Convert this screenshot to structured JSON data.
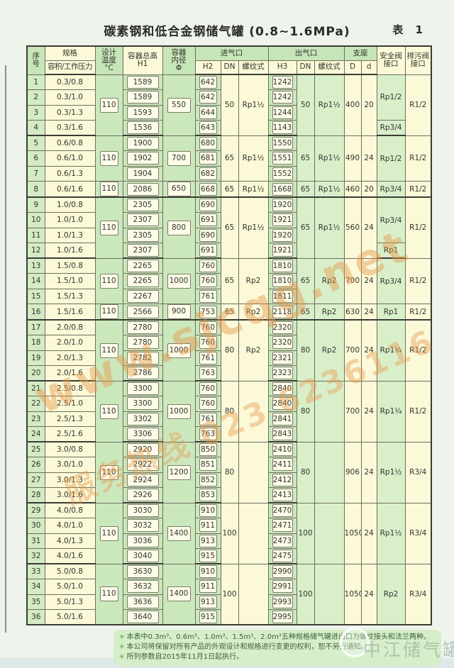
{
  "page": {
    "title": "碳素钢和低合金钢储气罐 (0.8~1.6MPa)",
    "table_label": "表 1"
  },
  "colors": {
    "header_green": "#c6e5b8",
    "cell_green": "#d9efca",
    "cell_yellow": "#fbf9d8",
    "value_box": "#fdfce9",
    "watermark_orange": "#e5994d",
    "notes_green": "#d6eec9"
  },
  "table": {
    "header": {
      "seq": "序\n号",
      "spec": "规格",
      "spec_sub": "容积/工作压力",
      "temp": "设计\n温度\n°C",
      "total_height": "容器总高\nH1",
      "inner_dia": "容器\n内径\nΦ",
      "inlet": "进气口",
      "outlet": "出气口",
      "support": "支座",
      "h2": "H2",
      "dn_in": "DN",
      "thread_in": "螺纹式",
      "h3": "H3",
      "dn_out": "DN",
      "thread_out": "螺纹式",
      "D": "D",
      "d": "d",
      "safety": "安全阀\n接口",
      "drain": "排污阀\n接口"
    },
    "blocks": [
      {
        "rows": [
          {
            "no": 1,
            "spec": "0.3/0.8",
            "h1": "1589",
            "h2": "642",
            "h3": "1242"
          },
          {
            "no": 2,
            "spec": "0.3/1.0",
            "h1": "1589",
            "h2": "642",
            "h3": "1242"
          },
          {
            "no": 3,
            "spec": "0.3/1.3",
            "h1": "1593",
            "h2": "644",
            "h3": "1244"
          },
          {
            "no": 4,
            "spec": "0.3/1.6",
            "h1": "1536",
            "h2": "643",
            "h3": "1143"
          }
        ],
        "temp": "110",
        "phi": "550",
        "dn_in": "50",
        "thread_in": "Rp1½",
        "dn_out": "50",
        "thread_out": "Rp1½",
        "D": "400",
        "d": "20",
        "safety": [
          {
            "label": "Rp1/2",
            "span": 3
          },
          {
            "label": "Rp3/4",
            "span": 1
          }
        ],
        "drain": [
          {
            "label": "R1/2",
            "span": 4
          }
        ]
      },
      {
        "rows": [
          {
            "no": 5,
            "spec": "0.6/0.8",
            "h1": "1900",
            "h2": "680",
            "h3": "1550"
          },
          {
            "no": 6,
            "spec": "0.6/1.0",
            "h1": "1902",
            "h2": "681",
            "h3": "1551"
          },
          {
            "no": 7,
            "spec": "0.6/1.3",
            "h1": "1904",
            "h2": "682",
            "h3": "1552"
          }
        ],
        "temp": "110",
        "phi": "700",
        "dn_in": "65",
        "thread_in": "Rp1½",
        "dn_out": "65",
        "thread_out": "Rp1½",
        "D": "490",
        "d": "24",
        "safety": [
          {
            "label": "Rp1/2",
            "span": 3
          }
        ],
        "drain": [
          {
            "label": "R1/2",
            "span": 3
          }
        ]
      },
      {
        "rows": [
          {
            "no": 8,
            "spec": "0.6/1.6",
            "h1": "2086",
            "h2": "668",
            "h3": "1668"
          }
        ],
        "temp": "110",
        "phi": "650",
        "dn_in": "65",
        "thread_in": "Rp1½",
        "dn_out": "65",
        "thread_out": "Rp1½",
        "D": "460",
        "d": "20",
        "safety": [
          {
            "label": "Rp3/4",
            "span": 1
          }
        ],
        "drain": [
          {
            "label": "R1/2",
            "span": 1
          }
        ]
      },
      {
        "rows": [
          {
            "no": 9,
            "spec": "1.0/0.8",
            "h1": "2305",
            "h2": "690",
            "h3": "1920"
          },
          {
            "no": 10,
            "spec": "1.0/1.0",
            "h1": "2307",
            "h2": "691",
            "h3": "1921"
          },
          {
            "no": 11,
            "spec": "1.0/1.3",
            "h1": "2305",
            "h2": "690",
            "h3": "1920"
          },
          {
            "no": 12,
            "spec": "1.0/1.6",
            "h1": "2307",
            "h2": "691",
            "h3": "1921"
          }
        ],
        "temp": "110",
        "phi": "800",
        "dn_in": "65",
        "thread_in": "Rp1½",
        "dn_out": "65",
        "thread_out": "Rp1½",
        "D": "560",
        "d": "24",
        "safety": [
          {
            "label": "Rp3/4",
            "span": 3
          },
          {
            "label": "Rp1",
            "span": 1
          }
        ],
        "drain": [
          {
            "label": "R1/2",
            "span": 4
          }
        ]
      },
      {
        "rows": [
          {
            "no": 13,
            "spec": "1.5/0.8",
            "h1": "2265",
            "h2": "760",
            "h3": "1810"
          },
          {
            "no": 14,
            "spec": "1.5/1.0",
            "h1": "2265",
            "h2": "760",
            "h3": "1810"
          },
          {
            "no": 15,
            "spec": "1.5/1.3",
            "h1": "2267",
            "h2": "761",
            "h3": "1811"
          }
        ],
        "temp": "110",
        "phi": "1000",
        "dn_in": "65",
        "thread_in": "Rp2",
        "dn_out": "65",
        "thread_out": "Rp2",
        "D": "700",
        "d": "24",
        "safety": [
          {
            "label": "Rp3/4",
            "span": 3
          }
        ],
        "drain": [
          {
            "label": "R1/2",
            "span": 3
          }
        ]
      },
      {
        "rows": [
          {
            "no": 16,
            "spec": "1.5/1.6",
            "h1": "2566",
            "h2": "753",
            "h3": "2118"
          }
        ],
        "temp": "110",
        "phi": "900",
        "dn_in": "65",
        "thread_in": "Rp2",
        "dn_out": "65",
        "thread_out": "Rp2",
        "D": "630",
        "d": "24",
        "safety": [
          {
            "label": "Rp1",
            "span": 1
          }
        ],
        "drain": [
          {
            "label": "R1/2",
            "span": 1
          }
        ]
      },
      {
        "rows": [
          {
            "no": 17,
            "spec": "2.0/0.8",
            "h1": "2780",
            "h2": "760",
            "h3": "2320"
          },
          {
            "no": 18,
            "spec": "2.0/1.0",
            "h1": "2780",
            "h2": "760",
            "h3": "2320"
          },
          {
            "no": 19,
            "spec": "2.0/1.3",
            "h1": "2782",
            "h2": "761",
            "h3": "2321"
          },
          {
            "no": 20,
            "spec": "2.0/1.6",
            "h1": "2786",
            "h2": "763",
            "h3": "2323"
          }
        ],
        "temp": "110",
        "phi": "1000",
        "dn_in": "80",
        "thread_in": "Rp2",
        "dn_out": "80",
        "thread_out": "Rp2",
        "D": "700",
        "d": "24",
        "safety": [
          {
            "label": "Rp1¼",
            "span": 4
          }
        ],
        "drain": [
          {
            "label": "R1/2",
            "span": 4
          }
        ]
      },
      {
        "rows": [
          {
            "no": 21,
            "spec": "2.5/0.8",
            "h1": "3300",
            "h2": "760",
            "h3": "2840"
          },
          {
            "no": 22,
            "spec": "2.5/1.0",
            "h1": "3300",
            "h2": "760",
            "h3": "2840"
          },
          {
            "no": 23,
            "spec": "2.5/1.3",
            "h1": "3302",
            "h2": "761",
            "h3": "2841"
          },
          {
            "no": 24,
            "spec": "2.5/1.6",
            "h1": "3306",
            "h2": "763",
            "h3": "2843"
          }
        ],
        "temp": "110",
        "phi": "1000",
        "dn_in": "80",
        "thread_in": "",
        "dn_out": "80",
        "thread_out": "",
        "D": "700",
        "d": "24",
        "safety": [
          {
            "label": "Rp1¼",
            "span": 4
          }
        ],
        "drain": [
          {
            "label": "R1/2",
            "span": 4
          }
        ]
      },
      {
        "rows": [
          {
            "no": 25,
            "spec": "3.0/0.8",
            "h1": "2920",
            "h2": "850",
            "h3": "2410"
          },
          {
            "no": 26,
            "spec": "3.0/1.0",
            "h1": "2922",
            "h2": "851",
            "h3": "2411"
          },
          {
            "no": 27,
            "spec": "3.0/1.3",
            "h1": "2924",
            "h2": "852",
            "h3": "2412"
          },
          {
            "no": 28,
            "spec": "3.0/1.6",
            "h1": "2926",
            "h2": "853",
            "h3": "2413"
          }
        ],
        "temp": "110",
        "phi": "1200",
        "dn_in": "80",
        "thread_in": "",
        "dn_out": "80",
        "thread_out": "",
        "D": "906",
        "d": "24",
        "safety": [
          {
            "label": "Rp1½",
            "span": 4
          }
        ],
        "drain": [
          {
            "label": "R3/4",
            "span": 4
          }
        ]
      },
      {
        "rows": [
          {
            "no": 29,
            "spec": "4.0/0.8",
            "h1": "3030",
            "h2": "910",
            "h3": "2470"
          },
          {
            "no": 30,
            "spec": "4.0/1.0",
            "h1": "3032",
            "h2": "911",
            "h3": "2471"
          },
          {
            "no": 31,
            "spec": "4.0/1.3",
            "h1": "3036",
            "h2": "913",
            "h3": "2473"
          },
          {
            "no": 32,
            "spec": "4.0/1.6",
            "h1": "3040",
            "h2": "915",
            "h3": "2475"
          }
        ],
        "temp": "110",
        "phi": "1400",
        "dn_in": "100",
        "thread_in": "",
        "dn_out": "100",
        "thread_out": "",
        "D": "1050",
        "d": "24",
        "safety": [
          {
            "label": "Rp1½",
            "span": 4
          }
        ],
        "drain": [
          {
            "label": "R3/4",
            "span": 4
          }
        ]
      },
      {
        "rows": [
          {
            "no": 33,
            "spec": "5.0/0.8",
            "h1": "3630",
            "h2": "910",
            "h3": "2990"
          },
          {
            "no": 34,
            "spec": "5.0/1.0",
            "h1": "3632",
            "h2": "911",
            "h3": "2991"
          },
          {
            "no": 35,
            "spec": "5.0/1.3",
            "h1": "3636",
            "h2": "913",
            "h3": "2993"
          },
          {
            "no": 36,
            "spec": "5.0/1.6",
            "h1": "3640",
            "h2": "915",
            "h3": "2995"
          }
        ],
        "temp": "110",
        "phi": "1400",
        "dn_in": "100",
        "thread_in": "",
        "dn_out": "100",
        "thread_out": "",
        "D": "1050",
        "d": "24",
        "safety": [
          {
            "label": "Rp2",
            "span": 4
          }
        ],
        "drain": [
          {
            "label": "R3/4",
            "span": 4
          }
        ]
      }
    ]
  },
  "notes": {
    "bullet": "✳",
    "items": [
      "本表中0.3m³、0.6m³、1.0m³、1.5m³、2.0m³五种规格储气罐进出口为螺纹接头和法兰两种。",
      "本公司将保留对所有产品的外观设计和规格进行变更的权利，恕不另行通知。",
      "所列参数自2015年11月1日起执行。"
    ]
  },
  "watermarks": {
    "site": "www.sjcqg.net",
    "hotline": "服务热线 023 6236116",
    "brand": "中江储气罐"
  }
}
